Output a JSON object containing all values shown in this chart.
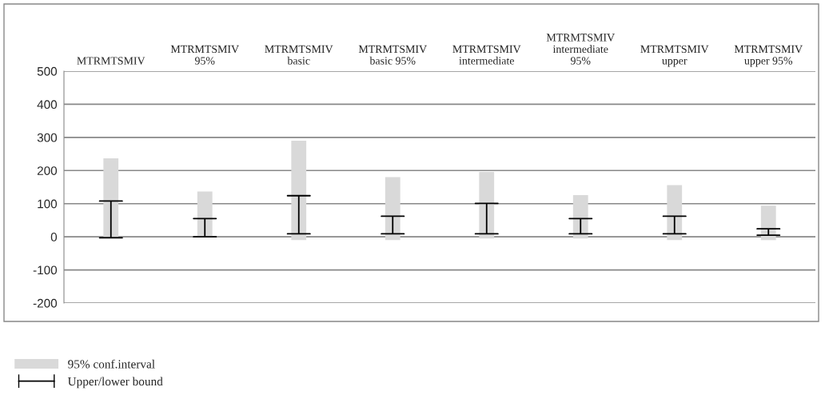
{
  "chart_data": {
    "type": "bar",
    "categories": [
      "MTRMTSMIV",
      "MTRMTSMIV\n95%",
      "MTRMTSMIV\nbasic",
      "MTRMTSMIV\nbasic 95%",
      "MTRMTSMIV\nintermediate",
      "MTRMTSMIV\nintermediate\n95%",
      "MTRMTSMIV\nupper",
      "MTRMTSMIV\nupper 95%"
    ],
    "series": [
      {
        "name": "95% conf.interval",
        "color": "#d9d9d9",
        "base": [
          0,
          0,
          -10,
          -10,
          -5,
          -5,
          -10,
          -10
        ],
        "values": [
          237,
          137,
          300,
          190,
          201,
          131,
          166,
          104
        ],
        "errors": [
          [
            -3,
            108
          ],
          [
            0,
            55
          ],
          [
            9,
            124
          ],
          [
            9,
            62
          ],
          [
            9,
            101
          ],
          [
            9,
            55
          ],
          [
            9,
            62
          ],
          [
            5,
            24
          ]
        ]
      }
    ],
    "annotations": [
      "Upper/lower bound"
    ],
    "ylim": [
      -200,
      500
    ],
    "yticks": [
      -200,
      -100,
      0,
      100,
      200,
      300,
      400,
      500
    ],
    "grid": "y",
    "legend": "bottom left"
  }
}
